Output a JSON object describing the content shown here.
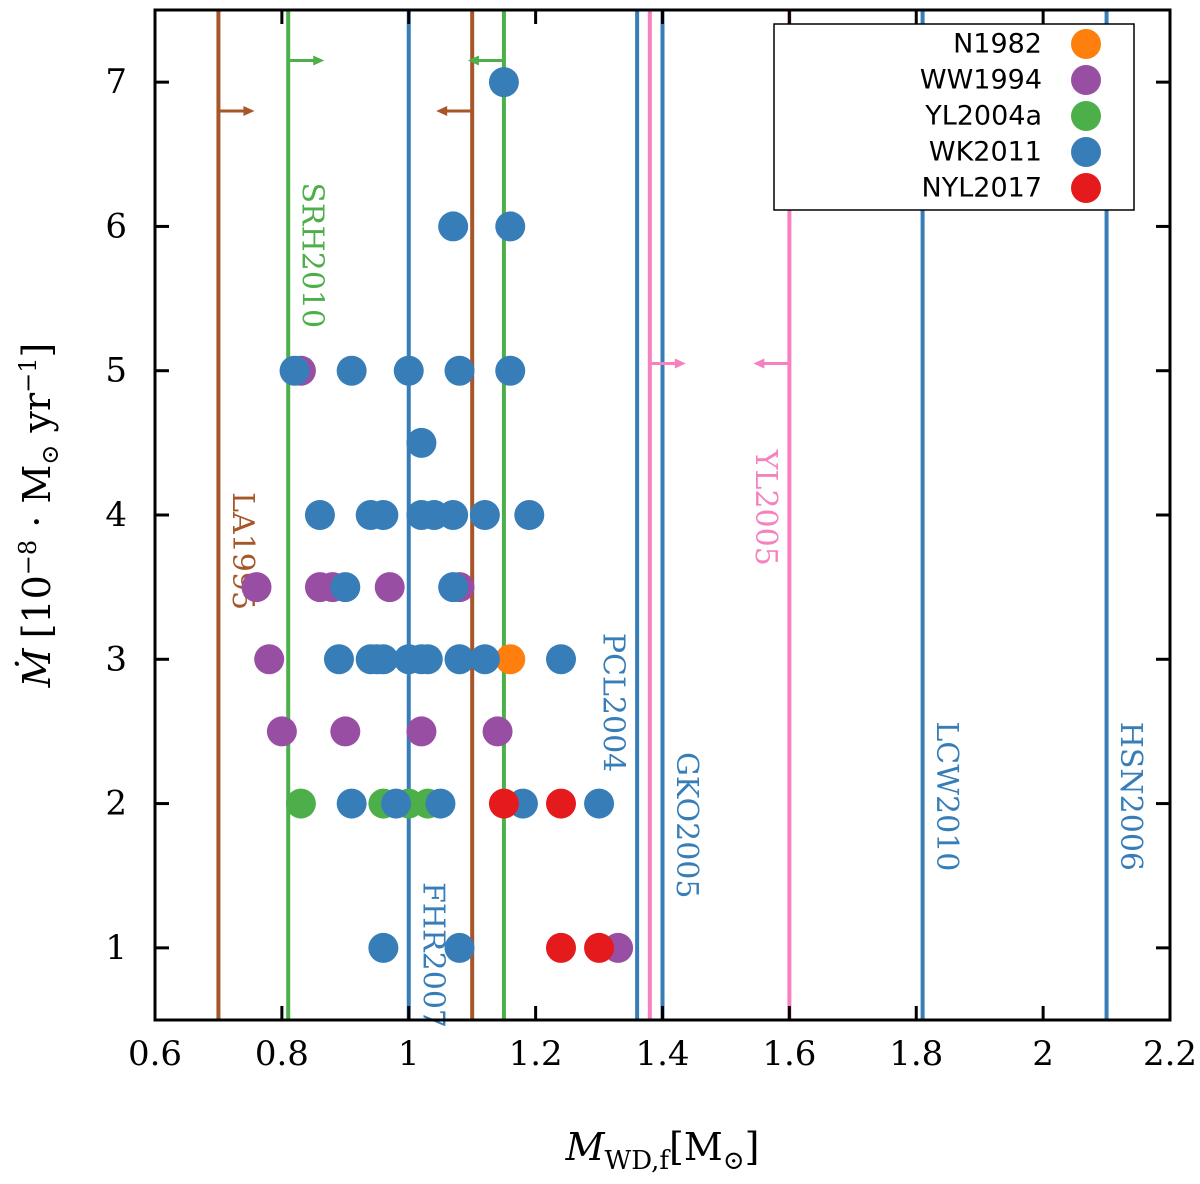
{
  "chart_data": {
    "type": "scatter",
    "xlabel": {
      "main": "M",
      "sub": "WD,f",
      "unit": "[M",
      "unit_sub": "⊙",
      "unit_close": "]"
    },
    "ylabel": {
      "main": "Ṁ",
      "text": "[10",
      "exp": "−8",
      "mid": " · M",
      "sun": "⊙",
      "yr": " yr",
      "yr_exp": "−1",
      "close": "]"
    },
    "xlim": [
      0.6,
      2.2
    ],
    "ylim": [
      0.5,
      7.5
    ],
    "x_ticks": [
      {
        "value": 0.6,
        "label": "0.6"
      },
      {
        "value": 0.8,
        "label": "0.8"
      },
      {
        "value": 1.0,
        "label": "1"
      },
      {
        "value": 1.2,
        "label": "1.2"
      },
      {
        "value": 1.4,
        "label": "1.4"
      },
      {
        "value": 1.6,
        "label": "1.6"
      },
      {
        "value": 1.8,
        "label": "1.8"
      },
      {
        "value": 2.0,
        "label": "2"
      },
      {
        "value": 2.2,
        "label": "2.2"
      }
    ],
    "y_ticks": [
      {
        "value": 1,
        "label": "1"
      },
      {
        "value": 2,
        "label": "2"
      },
      {
        "value": 3,
        "label": "3"
      },
      {
        "value": 4,
        "label": "4"
      },
      {
        "value": 5,
        "label": "5"
      },
      {
        "value": 6,
        "label": "6"
      },
      {
        "value": 7,
        "label": "7"
      }
    ],
    "legend_position": "top-right",
    "series": [
      {
        "name": "N1982",
        "color": "#ff7f0e",
        "points": [
          [
            1.16,
            3
          ]
        ]
      },
      {
        "name": "WW1994",
        "color": "#984ea3",
        "points": [
          [
            0.83,
            5
          ],
          [
            0.76,
            3.5
          ],
          [
            0.86,
            3.5
          ],
          [
            0.88,
            3.5
          ],
          [
            0.97,
            3.5
          ],
          [
            1.08,
            3.5
          ],
          [
            0.78,
            3
          ],
          [
            0.8,
            2.5
          ],
          [
            0.9,
            2.5
          ],
          [
            1.02,
            2.5
          ],
          [
            1.14,
            2.5
          ],
          [
            1.33,
            1
          ]
        ]
      },
      {
        "name": "YL2004a",
        "color": "#4daf4a",
        "points": [
          [
            0.83,
            2
          ],
          [
            0.96,
            2
          ],
          [
            1.0,
            2
          ],
          [
            1.03,
            2
          ]
        ]
      },
      {
        "name": "WK2011",
        "color": "#377eb8",
        "points": [
          [
            1.15,
            7
          ],
          [
            1.07,
            6
          ],
          [
            1.16,
            6
          ],
          [
            0.82,
            5
          ],
          [
            0.91,
            5
          ],
          [
            1.0,
            5
          ],
          [
            1.08,
            5
          ],
          [
            1.16,
            5
          ],
          [
            1.02,
            4.5
          ],
          [
            0.86,
            4
          ],
          [
            0.94,
            4
          ],
          [
            0.96,
            4
          ],
          [
            1.02,
            4
          ],
          [
            1.04,
            4
          ],
          [
            1.07,
            4
          ],
          [
            1.12,
            4
          ],
          [
            1.19,
            4
          ],
          [
            0.9,
            3.5
          ],
          [
            1.07,
            3.5
          ],
          [
            0.89,
            3
          ],
          [
            0.94,
            3
          ],
          [
            0.95,
            3
          ],
          [
            0.96,
            3
          ],
          [
            1.0,
            3
          ],
          [
            1.02,
            3
          ],
          [
            1.03,
            3
          ],
          [
            1.08,
            3
          ],
          [
            1.12,
            3
          ],
          [
            1.24,
            3
          ],
          [
            0.91,
            2
          ],
          [
            0.98,
            2
          ],
          [
            1.05,
            2
          ],
          [
            1.18,
            2
          ],
          [
            1.3,
            2
          ],
          [
            0.96,
            1
          ],
          [
            1.08,
            1
          ]
        ]
      },
      {
        "name": "NYL2017",
        "color": "#e41a1c",
        "points": [
          [
            1.15,
            2
          ],
          [
            1.24,
            2
          ],
          [
            1.24,
            1
          ],
          [
            1.3,
            1
          ]
        ]
      }
    ],
    "vertical_lines": [
      {
        "label": "LA1995",
        "x": 0.7,
        "color": "#a65628",
        "arrow_right_y": 6.8,
        "label_y": 3.75
      },
      {
        "label": "",
        "x": 1.1,
        "color": "#a65628",
        "arrow_left_y": 6.8
      },
      {
        "label": "SRH2010",
        "x": 0.81,
        "color": "#4daf4a",
        "arrow_right_y": 7.15,
        "label_y": 5.8
      },
      {
        "label": "",
        "x": 1.15,
        "color": "#4daf4a",
        "arrow_left_y": 7.15
      },
      {
        "label": "FHR2007",
        "x": 1.0,
        "color": "#377eb8",
        "label_y": 0.95
      },
      {
        "label": "PCL2004",
        "x": 1.36,
        "color": "#377eb8",
        "label_y": 2.7,
        "label_side": "left"
      },
      {
        "label": "GKO2005",
        "x": 1.4,
        "color": "#377eb8",
        "label_y": 1.85
      },
      {
        "label": "",
        "x": 1.38,
        "color": "#f781bf",
        "arrow_right_y": 5.05
      },
      {
        "label": "YL2005",
        "x": 1.6,
        "color": "#f781bf",
        "arrow_left_y": 5.05,
        "label_y": 4.05,
        "label_side": "left"
      },
      {
        "label": "LCW2010",
        "x": 1.81,
        "color": "#377eb8",
        "label_y": 2.05
      },
      {
        "label": "HSN2006",
        "x": 2.1,
        "color": "#377eb8",
        "label_y": 2.05
      }
    ]
  }
}
